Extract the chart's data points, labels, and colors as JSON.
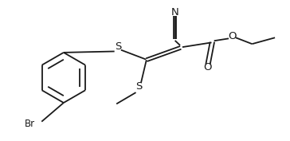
{
  "bg_color": "#ffffff",
  "line_color": "#1a1a1a",
  "line_width": 1.3,
  "font_size": 8.5,
  "figsize": [
    3.64,
    1.77
  ],
  "dpi": 100,
  "xlim": [
    0,
    10
  ],
  "ylim": [
    0,
    4.9
  ]
}
